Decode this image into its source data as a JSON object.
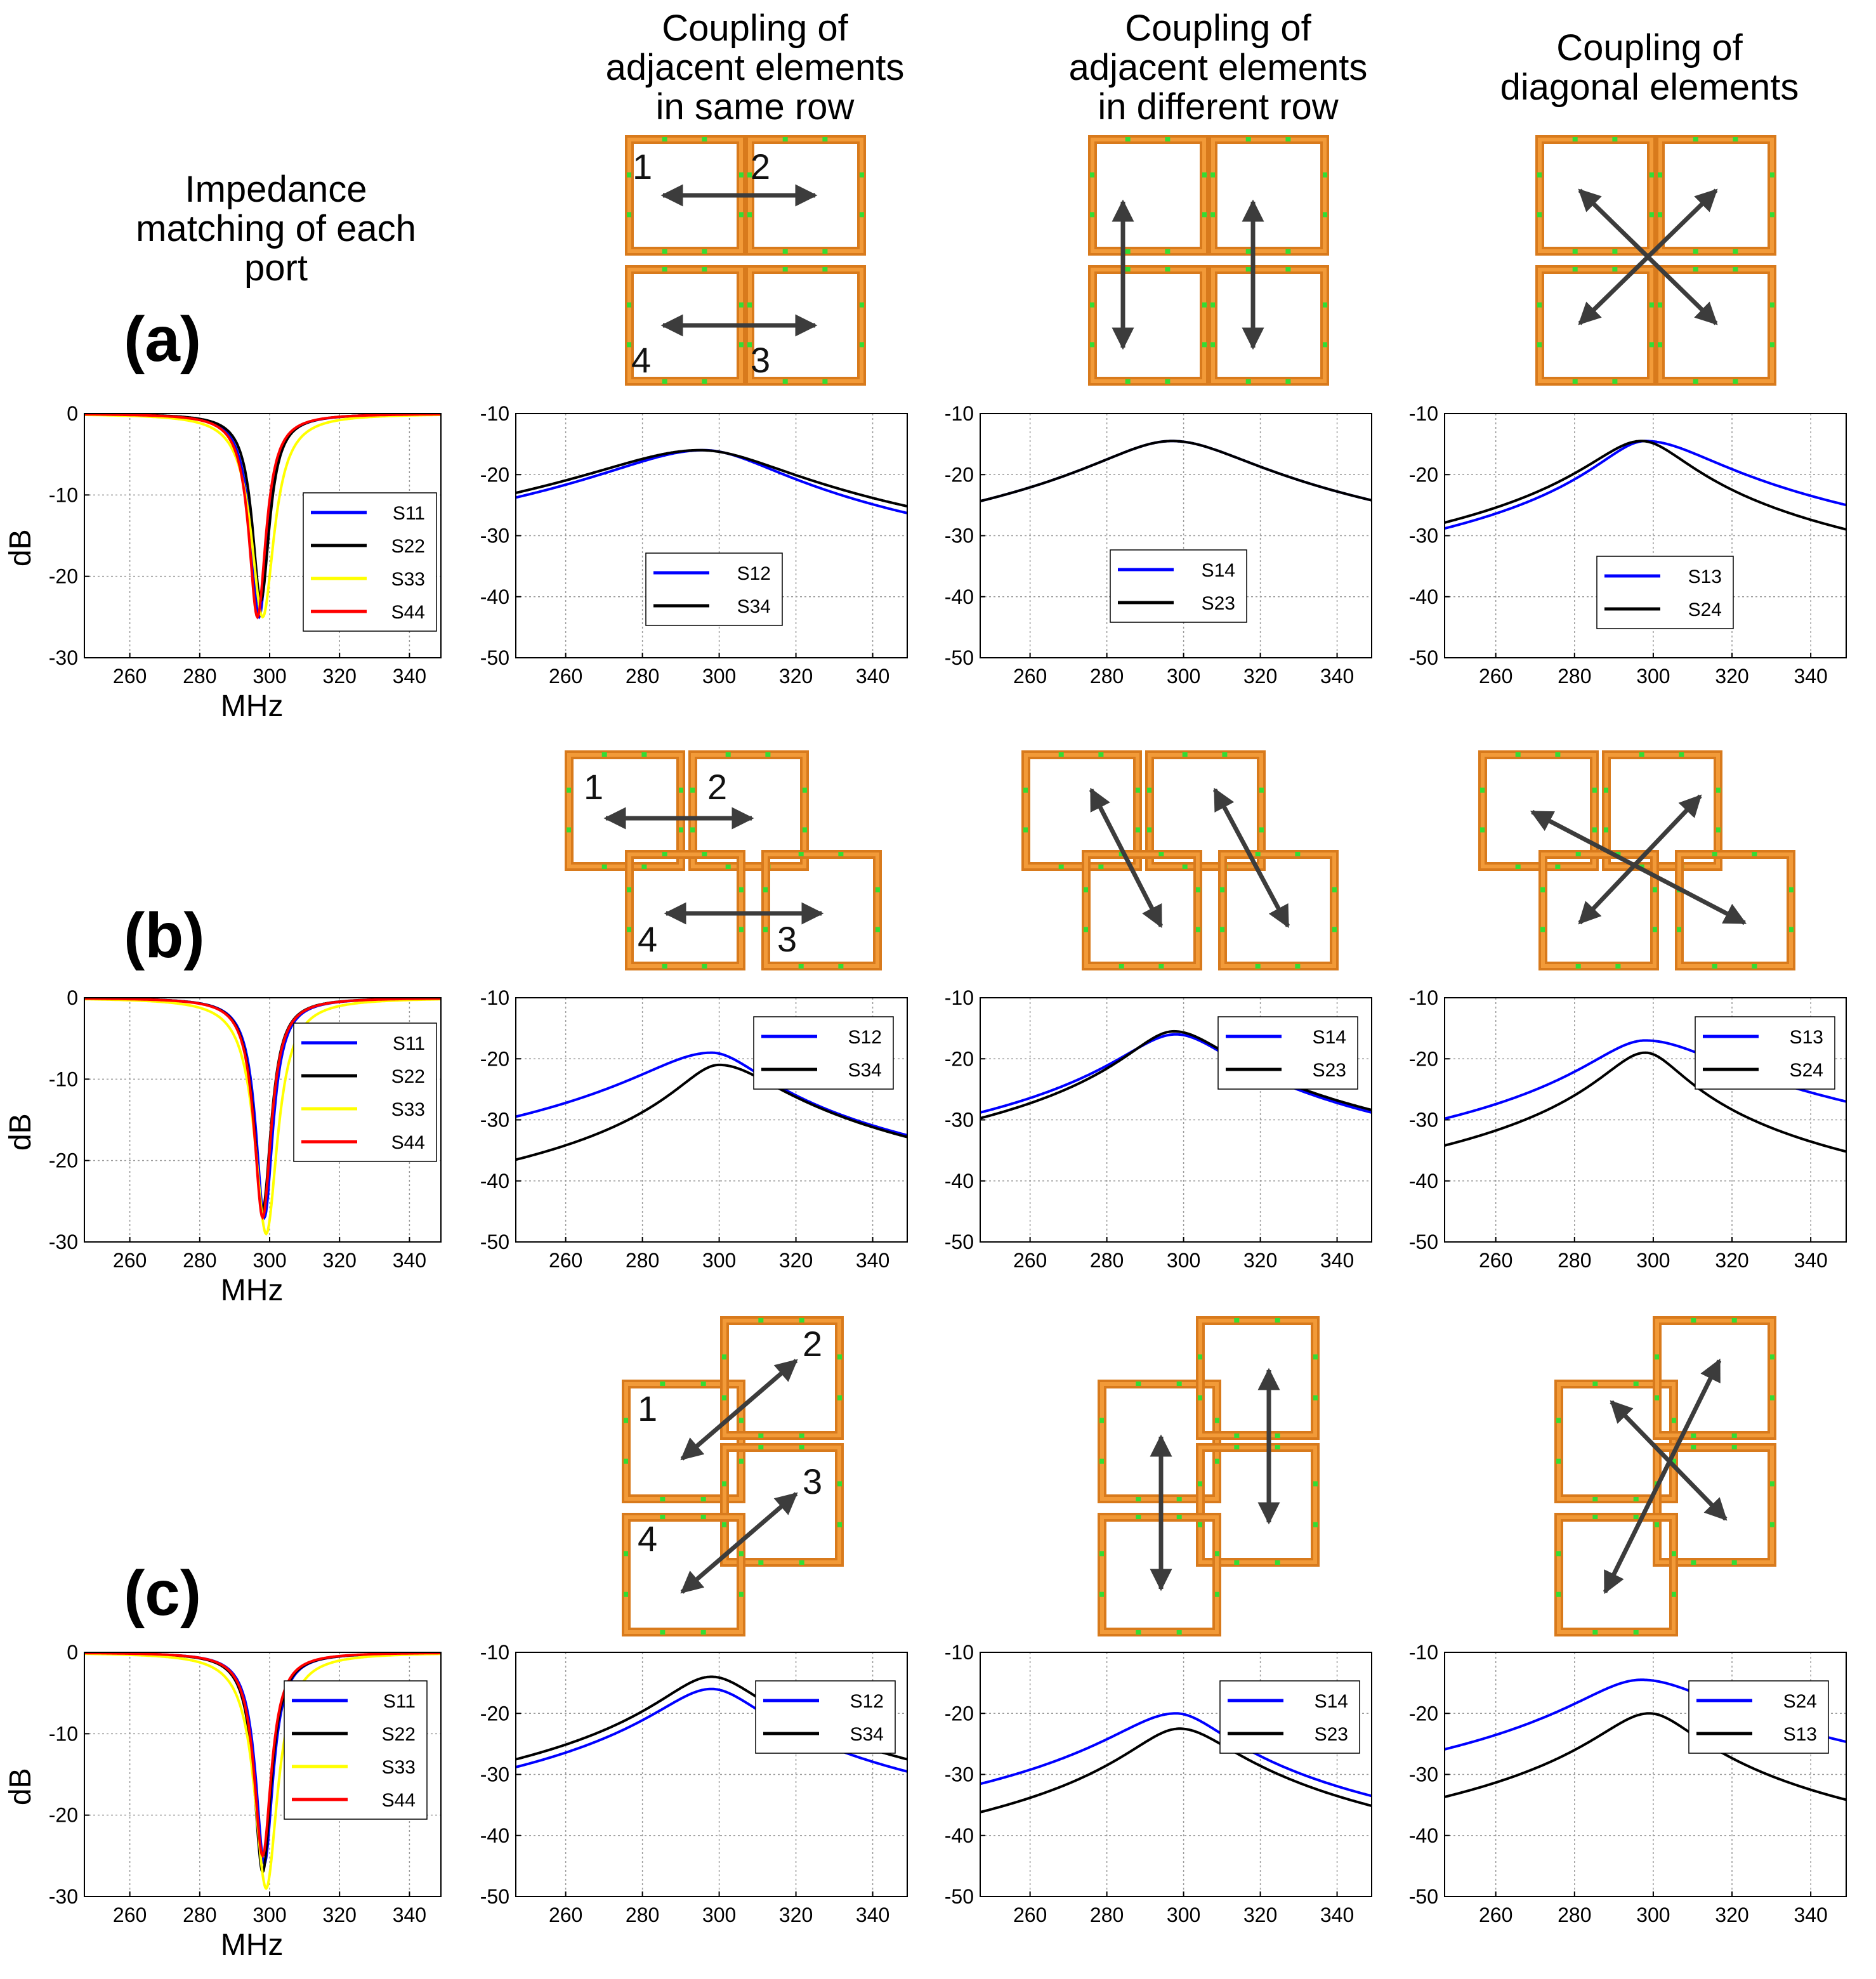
{
  "headers": {
    "col0": [
      "Impedance",
      "matching of each",
      "port"
    ],
    "col1": [
      "Coupling of",
      "adjacent elements",
      "in same row"
    ],
    "col2": [
      "Coupling of",
      "adjacent elements",
      "in different row"
    ],
    "col3": [
      "Coupling of",
      "diagonal elements"
    ]
  },
  "row_labels": [
    "(a)",
    "(b)",
    "(c)"
  ],
  "port_labels": [
    "1",
    "2",
    "3",
    "4"
  ],
  "colors": {
    "S11": "#0000ff",
    "S22": "#000000",
    "S33": "#ffff00",
    "S44": "#ff0000",
    "blue": "#0000ff",
    "black": "#000000",
    "coil_outer": "#d87a1c",
    "coil_inner": "#f29a38",
    "tuning_cap": "#33dd33",
    "arrow": "#3c3c3c"
  },
  "chart_data": [
    {
      "id": "a0",
      "type": "line",
      "xlabel": "MHz",
      "ylabel": "dB",
      "xlim": [
        247,
        349
      ],
      "ylim": [
        -30,
        0
      ],
      "xticks": [
        260,
        280,
        300,
        320,
        340
      ],
      "yticks": [
        0,
        -10,
        -20,
        -30
      ],
      "legend_position": "right",
      "series": [
        {
          "name": "S11",
          "color": "#0000ff",
          "f0": 297,
          "min": -25,
          "w": 3
        },
        {
          "name": "S22",
          "color": "#000000",
          "f0": 297.5,
          "min": -23,
          "w": 3
        },
        {
          "name": "S33",
          "color": "#ffff00",
          "f0": 298,
          "min": -25,
          "w": 4
        },
        {
          "name": "S44",
          "color": "#ff0000",
          "f0": 296.5,
          "min": -25,
          "w": 3
        }
      ]
    },
    {
      "id": "a1",
      "type": "line",
      "xlim": [
        247,
        349
      ],
      "ylim": [
        -50,
        -10
      ],
      "xticks": [
        260,
        280,
        300,
        320,
        340
      ],
      "yticks": [
        -10,
        -20,
        -30,
        -40,
        -50
      ],
      "legend_position": "bottom-center",
      "series": [
        {
          "name": "S12",
          "color": "#0000ff",
          "peak": -16,
          "f0": 296,
          "wl": 22,
          "wr": 17
        },
        {
          "name": "S34",
          "color": "#000000",
          "peak": -16,
          "f0": 295,
          "wl": 24,
          "wr": 20
        }
      ]
    },
    {
      "id": "a2",
      "type": "line",
      "xlim": [
        247,
        349
      ],
      "ylim": [
        -50,
        -10
      ],
      "xticks": [
        260,
        280,
        300,
        320,
        340
      ],
      "yticks": [
        -10,
        -20,
        -30,
        -40,
        -50
      ],
      "legend_position": "center",
      "series": [
        {
          "name": "S14",
          "color": "#0000ff",
          "peak": -14.5,
          "f0": 297,
          "wl": 17,
          "wr": 18
        },
        {
          "name": "S23",
          "color": "#000000",
          "peak": -14.5,
          "f0": 297,
          "wl": 17,
          "wr": 18
        }
      ]
    },
    {
      "id": "a3",
      "type": "line",
      "xlim": [
        247,
        349
      ],
      "ylim": [
        -50,
        -10
      ],
      "xticks": [
        260,
        280,
        300,
        320,
        340
      ],
      "yticks": [
        -10,
        -20,
        -30,
        -40,
        -50
      ],
      "legend_position": "center",
      "series": [
        {
          "name": "S13",
          "color": "#0000ff",
          "peak": -14.5,
          "f0": 298,
          "wl": 10,
          "wr": 16
        },
        {
          "name": "S24",
          "color": "#000000",
          "peak": -14.5,
          "f0": 297,
          "wl": 11,
          "wr": 10
        }
      ]
    },
    {
      "id": "b0",
      "type": "line",
      "xlabel": "MHz",
      "ylabel": "dB",
      "xlim": [
        247,
        349
      ],
      "ylim": [
        -30,
        0
      ],
      "xticks": [
        260,
        280,
        300,
        320,
        340
      ],
      "yticks": [
        0,
        -10,
        -20,
        -30
      ],
      "legend_position": "right",
      "series": [
        {
          "name": "S11",
          "color": "#0000ff",
          "f0": 298.5,
          "min": -27,
          "w": 3
        },
        {
          "name": "S22",
          "color": "#000000",
          "f0": 298,
          "min": -26,
          "w": 3
        },
        {
          "name": "S33",
          "color": "#ffff00",
          "f0": 299,
          "min": -29,
          "w": 4
        },
        {
          "name": "S44",
          "color": "#ff0000",
          "f0": 298,
          "min": -27,
          "w": 3
        }
      ]
    },
    {
      "id": "b1",
      "type": "line",
      "xlim": [
        247,
        349
      ],
      "ylim": [
        -50,
        -10
      ],
      "xticks": [
        260,
        280,
        300,
        320,
        340
      ],
      "yticks": [
        -10,
        -20,
        -30,
        -40,
        -50
      ],
      "legend_position": "top-right",
      "series": [
        {
          "name": "S12",
          "color": "#0000ff",
          "peak": -19,
          "f0": 298,
          "wl": 16,
          "wr": 11
        },
        {
          "name": "S34",
          "color": "#000000",
          "peak": -21,
          "f0": 300,
          "wl": 9,
          "wr": 13
        }
      ]
    },
    {
      "id": "b2",
      "type": "line",
      "xlim": [
        247,
        349
      ],
      "ylim": [
        -50,
        -10
      ],
      "xticks": [
        260,
        280,
        300,
        320,
        340
      ],
      "yticks": [
        -10,
        -20,
        -30,
        -40,
        -50
      ],
      "legend_position": "top-right",
      "series": [
        {
          "name": "S14",
          "color": "#0000ff",
          "peak": -16,
          "f0": 298,
          "wl": 12,
          "wr": 12
        },
        {
          "name": "S23",
          "color": "#000000",
          "peak": -15.5,
          "f0": 297.5,
          "wl": 10,
          "wr": 12
        }
      ]
    },
    {
      "id": "b3",
      "type": "line",
      "xlim": [
        247,
        349
      ],
      "ylim": [
        -50,
        -10
      ],
      "xticks": [
        260,
        280,
        300,
        320,
        340
      ],
      "yticks": [
        -10,
        -20,
        -30,
        -40,
        -50
      ],
      "legend_position": "top-right",
      "series": [
        {
          "name": "S13",
          "color": "#0000ff",
          "peak": -17,
          "f0": 298,
          "wl": 12,
          "wr": 17
        },
        {
          "name": "S24",
          "color": "#000000",
          "peak": -19,
          "f0": 298,
          "wl": 9,
          "wr": 8
        }
      ]
    },
    {
      "id": "c0",
      "type": "line",
      "xlabel": "MHz",
      "ylabel": "dB",
      "xlim": [
        247,
        349
      ],
      "ylim": [
        -30,
        0
      ],
      "xticks": [
        260,
        280,
        300,
        320,
        340
      ],
      "yticks": [
        0,
        -10,
        -20,
        -30
      ],
      "legend_position": "right",
      "series": [
        {
          "name": "S11",
          "color": "#0000ff",
          "f0": 298.5,
          "min": -26,
          "w": 3
        },
        {
          "name": "S22",
          "color": "#000000",
          "f0": 298,
          "min": -27,
          "w": 3
        },
        {
          "name": "S33",
          "color": "#ffff00",
          "f0": 299,
          "min": -29,
          "w": 4
        },
        {
          "name": "S44",
          "color": "#ff0000",
          "f0": 298,
          "min": -25,
          "w": 3
        }
      ]
    },
    {
      "id": "c1",
      "type": "line",
      "xlim": [
        247,
        349
      ],
      "ylim": [
        -50,
        -10
      ],
      "xticks": [
        260,
        280,
        300,
        320,
        340
      ],
      "yticks": [
        -10,
        -20,
        -30,
        -40,
        -50
      ],
      "legend_position": "top-right",
      "series": [
        {
          "name": "S12",
          "color": "#0000ff",
          "peak": -16,
          "f0": 298,
          "wl": 12,
          "wr": 11
        },
        {
          "name": "S34",
          "color": "#000000",
          "peak": -14,
          "f0": 298,
          "wl": 11,
          "wr": 11
        }
      ]
    },
    {
      "id": "c2",
      "type": "line",
      "xlim": [
        247,
        349
      ],
      "ylim": [
        -50,
        -10
      ],
      "xticks": [
        260,
        280,
        300,
        320,
        340
      ],
      "yticks": [
        -10,
        -20,
        -30,
        -40,
        -50
      ],
      "legend_position": "top-right",
      "series": [
        {
          "name": "S14",
          "color": "#0000ff",
          "peak": -20,
          "f0": 298,
          "wl": 14,
          "wr": 11
        },
        {
          "name": "S23",
          "color": "#000000",
          "peak": -22.5,
          "f0": 299,
          "wl": 11,
          "wr": 12
        }
      ]
    },
    {
      "id": "c3",
      "type": "line",
      "xlim": [
        247,
        349
      ],
      "ylim": [
        -50,
        -10
      ],
      "xticks": [
        260,
        280,
        300,
        320,
        340
      ],
      "yticks": [
        -10,
        -20,
        -30,
        -40,
        -50
      ],
      "legend_position": "top-right",
      "series": [
        {
          "name": "S24",
          "color": "#0000ff",
          "peak": -14.5,
          "f0": 297,
          "wl": 14,
          "wr": 17
        },
        {
          "name": "S13",
          "color": "#000000",
          "peak": -20,
          "f0": 299,
          "wl": 11,
          "wr": 10
        }
      ]
    }
  ]
}
